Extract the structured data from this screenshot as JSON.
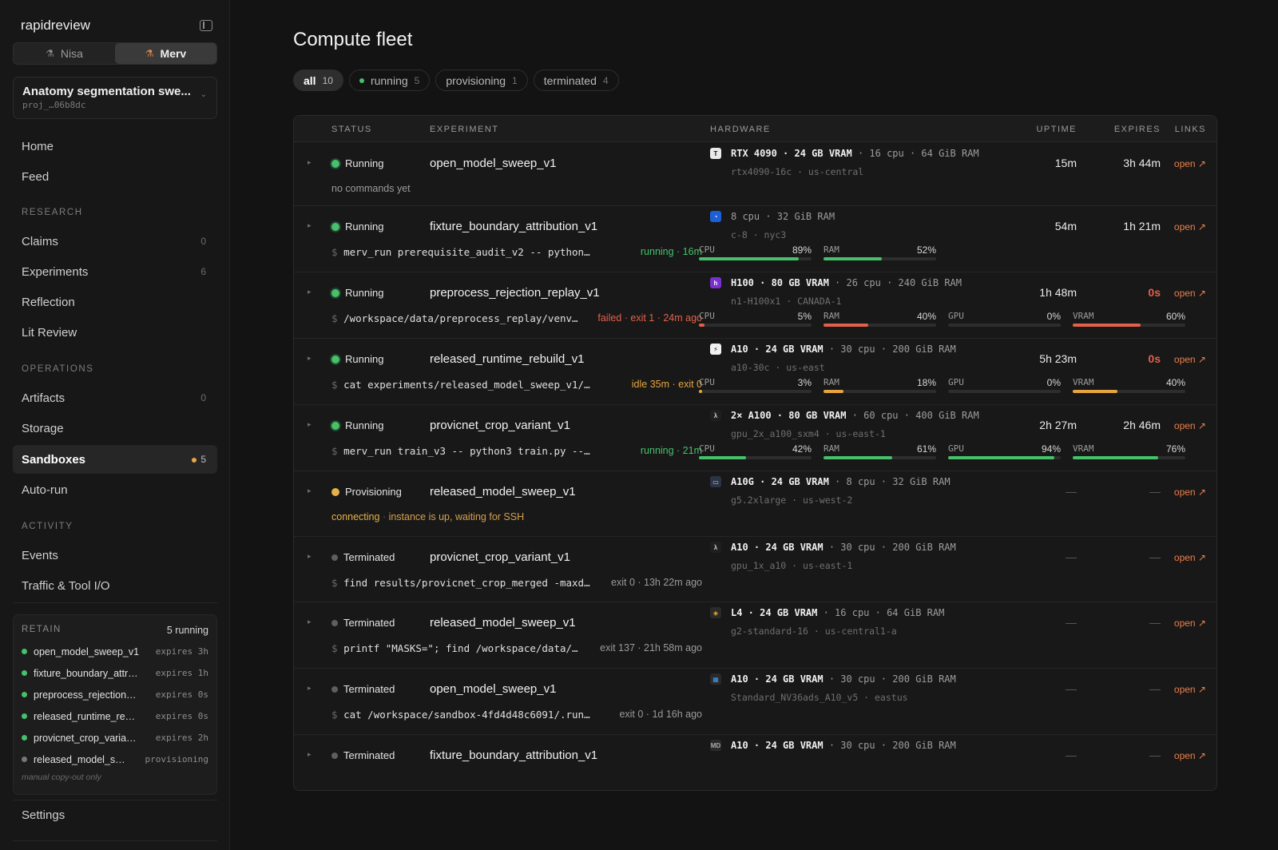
{
  "app": {
    "brand": "rapidreview"
  },
  "users": [
    {
      "name": "Nisa",
      "active": false
    },
    {
      "name": "Merv",
      "active": true
    }
  ],
  "project": {
    "name": "Anatomy segmentation swe...",
    "id": "proj_…06b8dc"
  },
  "nav": {
    "home": "Home",
    "feed": "Feed",
    "research_label": "RESEARCH",
    "claims": {
      "label": "Claims",
      "count": "0"
    },
    "experiments": {
      "label": "Experiments",
      "count": "6"
    },
    "reflection": "Reflection",
    "lit_review": "Lit Review",
    "operations_label": "OPERATIONS",
    "artifacts": {
      "label": "Artifacts",
      "count": "0"
    },
    "storage": "Storage",
    "sandboxes": {
      "label": "Sandboxes",
      "count": "5"
    },
    "autorun": "Auto-run",
    "activity_label": "ACTIVITY",
    "events": "Events",
    "traffic": "Traffic & Tool I/O",
    "settings": "Settings"
  },
  "retain": {
    "title": "RETAIN",
    "count": "5 running",
    "items": [
      {
        "name": "open_model_sweep_v1",
        "expires": "expires 3h",
        "color": "#46c06a"
      },
      {
        "name": "fixture_boundary_attr…",
        "expires": "expires 1h",
        "color": "#46c06a"
      },
      {
        "name": "preprocess_rejection…",
        "expires": "expires 0s",
        "color": "#46c06a"
      },
      {
        "name": "released_runtime_re…",
        "expires": "expires 0s",
        "color": "#46c06a"
      },
      {
        "name": "provicnet_crop_varia…",
        "expires": "expires 2h",
        "color": "#46c06a"
      },
      {
        "name": "released_model_s…",
        "expires": "provisioning",
        "color": "#777777"
      }
    ],
    "note": "manual copy-out only"
  },
  "page": {
    "title": "Compute fleet"
  },
  "filters": [
    {
      "label": "all",
      "count": "10",
      "active": true
    },
    {
      "label": "running",
      "count": "5",
      "active": false,
      "dot": true
    },
    {
      "label": "provisioning",
      "count": "1",
      "active": false
    },
    {
      "label": "terminated",
      "count": "4",
      "active": false
    }
  ],
  "columns": {
    "status": "STATUS",
    "experiment": "EXPERIMENT",
    "hardware": "HARDWARE",
    "uptime": "UPTIME",
    "expires": "EXPIRES",
    "links": "LINKS"
  },
  "colors": {
    "running": "#46c06a",
    "provisioning": "#e6b04a",
    "terminated": "#5e5e5e",
    "failed": "#e4604a",
    "idle": "#e6a540",
    "accent": "#ec7f4b"
  },
  "rows": [
    {
      "status": "Running",
      "experiment": "open_model_sweep_v1",
      "gpu": "RTX 4090 · 24 GB VRAM",
      "spec": " · 16 cpu · 64 GiB RAM",
      "sub": "rtx4090-16c · us-central",
      "icon": "T",
      "icon_bg": "#e9e9e9",
      "icon_fg": "#111111",
      "uptime": "15m",
      "expires": "3h 44m",
      "expires_red": false,
      "link": "open ↗",
      "note": "no commands yet"
    },
    {
      "status": "Running",
      "experiment": "fixture_boundary_attribution_v1",
      "gpu": "",
      "spec": "8 cpu · 32 GiB RAM",
      "sub": "c-8 · nyc3",
      "icon": "◔",
      "icon_bg": "#1d5fd6",
      "icon_fg": "#ffffff",
      "uptime": "54m",
      "expires": "1h 21m",
      "expires_red": false,
      "link": "open ↗",
      "cmd": "merv_run prerequisite_audit_v2 -- python3 exp…",
      "cmd_state": "running · 16m",
      "cmd_state_color": "#46c06a",
      "meters": [
        {
          "label": "CPU",
          "value": "89%",
          "pct": 0.89,
          "color": "#46c06a"
        },
        {
          "label": "RAM",
          "value": "52%",
          "pct": 0.52,
          "color": "#46c06a"
        }
      ]
    },
    {
      "status": "Running",
      "experiment": "preprocess_rejection_replay_v1",
      "gpu": "H100 · 80 GB VRAM",
      "spec": " · 26 cpu · 240 GiB RAM",
      "sub": "n1-H100x1 · CANADA-1",
      "icon": "h",
      "icon_bg": "#7a2fd0",
      "icon_fg": "#ffffff",
      "uptime": "1h 48m",
      "expires": "0s",
      "expires_red": true,
      "link": "open ↗",
      "cmd": "/workspace/data/preprocess_replay/venv…",
      "cmd_state": "failed · exit 1 · 24m ago",
      "cmd_state_color": "#e4604a",
      "meters": [
        {
          "label": "CPU",
          "value": "5%",
          "pct": 0.05,
          "color": "#e4604a"
        },
        {
          "label": "RAM",
          "value": "40%",
          "pct": 0.4,
          "color": "#e4604a"
        },
        {
          "label": "GPU",
          "value": "0%",
          "pct": 0.0,
          "color": "#e4604a"
        },
        {
          "label": "VRAM",
          "value": "60%",
          "pct": 0.6,
          "color": "#e4604a"
        }
      ]
    },
    {
      "status": "Running",
      "experiment": "released_runtime_rebuild_v1",
      "gpu": "A10 · 24 GB VRAM",
      "spec": " · 30 cpu · 200 GiB RAM",
      "sub": "a10-30c · us-east",
      "icon": "⚡",
      "icon_bg": "#f1f1f1",
      "icon_fg": "#111111",
      "uptime": "5h 23m",
      "expires": "0s",
      "expires_red": true,
      "link": "open ↗",
      "cmd": "cat experiments/released_model_sweep_v1/conf…",
      "cmd_state": "idle 35m · exit 0",
      "cmd_state_color": "#e6a540",
      "meters": [
        {
          "label": "CPU",
          "value": "3%",
          "pct": 0.03,
          "color": "#e6a540"
        },
        {
          "label": "RAM",
          "value": "18%",
          "pct": 0.18,
          "color": "#e6a540"
        },
        {
          "label": "GPU",
          "value": "0%",
          "pct": 0.0,
          "color": "#e6a540"
        },
        {
          "label": "VRAM",
          "value": "40%",
          "pct": 0.4,
          "color": "#e6a540"
        }
      ]
    },
    {
      "status": "Running",
      "experiment": "provicnet_crop_variant_v1",
      "gpu": "2× A100 · 80 GB VRAM",
      "spec": " · 60 cpu · 400 GiB RAM",
      "sub": "gpu_2x_a100_sxm4 · us-east-1",
      "icon": "λ",
      "icon_bg": "#1f1f1f",
      "icon_fg": "#d0d0d0",
      "uptime": "2h 27m",
      "expires": "2h 46m",
      "expires_red": false,
      "link": "open ↗",
      "cmd": "merv_run train_v3 -- python3 train.py --confi…",
      "cmd_state": "running · 21m",
      "cmd_state_color": "#46c06a",
      "meters": [
        {
          "label": "CPU",
          "value": "42%",
          "pct": 0.42,
          "color": "#46c06a"
        },
        {
          "label": "RAM",
          "value": "61%",
          "pct": 0.61,
          "color": "#46c06a"
        },
        {
          "label": "GPU",
          "value": "94%",
          "pct": 0.94,
          "color": "#46c06a"
        },
        {
          "label": "VRAM",
          "value": "76%",
          "pct": 0.76,
          "color": "#46c06a"
        }
      ]
    },
    {
      "status": "Provisioning",
      "experiment": "released_model_sweep_v1",
      "gpu": "A10G · 24 GB VRAM",
      "spec": " · 8 cpu · 32 GiB RAM",
      "sub": "g5.2xlarge · us-west-2",
      "icon": "▭",
      "icon_bg": "#2a3445",
      "icon_fg": "#c9d4e6",
      "uptime": "—",
      "expires": "—",
      "expires_red": false,
      "link": "open ↗",
      "prov_state": "connecting",
      "prov_note": "instance is up, waiting for SSH"
    },
    {
      "status": "Terminated",
      "experiment": "provicnet_crop_variant_v1",
      "gpu": "A10 · 24 GB VRAM",
      "spec": " · 30 cpu · 200 GiB RAM",
      "sub": "gpu_1x_a10 · us-east-1",
      "icon": "λ",
      "icon_bg": "#1f1f1f",
      "icon_fg": "#d0d0d0",
      "uptime": "—",
      "expires": "—",
      "expires_red": false,
      "link": "open ↗",
      "cmd": "find results/provicnet_crop_merged -maxd…",
      "cmd_state": "exit 0 · 13h 22m ago",
      "cmd_state_color": "#9a9a9a"
    },
    {
      "status": "Terminated",
      "experiment": "released_model_sweep_v1",
      "gpu": "L4 · 24 GB VRAM",
      "spec": " · 16 cpu · 64 GiB RAM",
      "sub": "g2-standard-16 · us-central1-a",
      "icon": "◈",
      "icon_bg": "#2a2a2a",
      "icon_fg": "#f1b41c",
      "uptime": "—",
      "expires": "—",
      "expires_red": false,
      "link": "open ↗",
      "cmd": "printf \"MASKS=\"; find /workspace/data/…",
      "cmd_state": "exit 137 · 21h 58m ago",
      "cmd_state_color": "#9a9a9a"
    },
    {
      "status": "Terminated",
      "experiment": "open_model_sweep_v1",
      "gpu": "A10 · 24 GB VRAM",
      "spec": " · 30 cpu · 200 GiB RAM",
      "sub": "Standard_NV36ads_A10_v5 · eastus",
      "icon": "▦",
      "icon_bg": "#2a2a2a",
      "icon_fg": "#3c9df0",
      "uptime": "—",
      "expires": "—",
      "expires_red": false,
      "link": "open ↗",
      "cmd": "cat /workspace/sandbox-4fd4d48c6091/.runs/…",
      "cmd_state": "exit 0 · 1d 16h ago",
      "cmd_state_color": "#9a9a9a"
    },
    {
      "status": "Terminated",
      "experiment": "fixture_boundary_attribution_v1",
      "gpu": "A10 · 24 GB VRAM",
      "spec": " · 30 cpu · 200 GiB RAM",
      "sub": "",
      "icon": "MD",
      "icon_bg": "#2a2a2a",
      "icon_fg": "#aaaaaa",
      "uptime": "—",
      "expires": "—",
      "expires_red": false,
      "link": "open ↗"
    }
  ]
}
